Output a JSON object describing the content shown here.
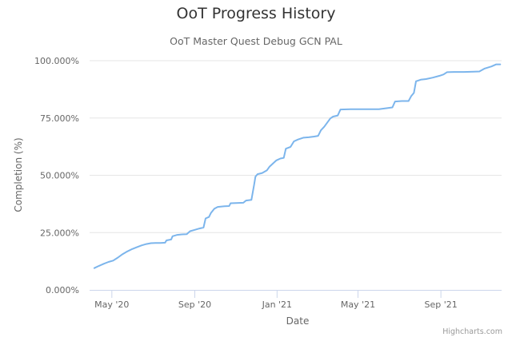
{
  "chart_data": {
    "type": "line",
    "title": "OoT Progress History",
    "subtitle": "OoT Master Quest Debug GCN PAL",
    "xlabel": "Date",
    "ylabel": "Completion (%)",
    "ylim": [
      0,
      100
    ],
    "y_ticks": [
      "0.000%",
      "25.000%",
      "50.000%",
      "75.000%",
      "100.000%"
    ],
    "y_tick_values": [
      0,
      25,
      50,
      75,
      100
    ],
    "x_ticks": [
      "May '20",
      "Sep '20",
      "Jan '21",
      "May '21",
      "Sep '21"
    ],
    "x_tick_values": [
      "2020-05-01",
      "2020-09-01",
      "2021-01-01",
      "2021-05-01",
      "2021-09-01"
    ],
    "xlim": [
      "2020-03-29",
      "2021-11-30"
    ],
    "grid": "horizontal",
    "series": [
      {
        "color": "#7cb5ec",
        "points": [
          [
            "2020-04-05",
            9.5
          ],
          [
            "2020-04-12",
            10.5
          ],
          [
            "2020-04-19",
            11.4
          ],
          [
            "2020-04-26",
            12.2
          ],
          [
            "2020-05-03",
            12.8
          ],
          [
            "2020-05-10",
            14.1
          ],
          [
            "2020-05-17",
            15.6
          ],
          [
            "2020-05-24",
            16.8
          ],
          [
            "2020-05-31",
            17.8
          ],
          [
            "2020-06-07",
            18.6
          ],
          [
            "2020-06-14",
            19.4
          ],
          [
            "2020-06-21",
            20.0
          ],
          [
            "2020-06-28",
            20.4
          ],
          [
            "2020-07-05",
            20.5
          ],
          [
            "2020-07-12",
            20.5
          ],
          [
            "2020-07-19",
            20.6
          ],
          [
            "2020-07-21",
            21.6
          ],
          [
            "2020-07-28",
            22.0
          ],
          [
            "2020-07-30",
            23.4
          ],
          [
            "2020-08-06",
            24.0
          ],
          [
            "2020-08-13",
            24.2
          ],
          [
            "2020-08-20",
            24.3
          ],
          [
            "2020-08-25",
            25.6
          ],
          [
            "2020-09-01",
            26.2
          ],
          [
            "2020-09-08",
            26.8
          ],
          [
            "2020-09-14",
            27.2
          ],
          [
            "2020-09-17",
            31.2
          ],
          [
            "2020-09-22",
            31.8
          ],
          [
            "2020-09-25",
            33.6
          ],
          [
            "2020-09-30",
            35.4
          ],
          [
            "2020-10-05",
            36.2
          ],
          [
            "2020-10-15",
            36.5
          ],
          [
            "2020-10-22",
            36.6
          ],
          [
            "2020-10-24",
            37.8
          ],
          [
            "2020-11-01",
            37.9
          ],
          [
            "2020-11-12",
            38.0
          ],
          [
            "2020-11-16",
            39.0
          ],
          [
            "2020-11-24",
            39.3
          ],
          [
            "2020-11-28",
            46.0
          ],
          [
            "2020-11-30",
            49.4
          ],
          [
            "2020-12-03",
            50.5
          ],
          [
            "2020-12-10",
            51.0
          ],
          [
            "2020-12-17",
            52.2
          ],
          [
            "2020-12-21",
            53.8
          ],
          [
            "2020-12-26",
            55.2
          ],
          [
            "2020-12-31",
            56.5
          ],
          [
            "2021-01-06",
            57.3
          ],
          [
            "2021-01-11",
            57.6
          ],
          [
            "2021-01-14",
            61.6
          ],
          [
            "2021-01-21",
            62.4
          ],
          [
            "2021-01-26",
            64.8
          ],
          [
            "2021-02-01",
            65.6
          ],
          [
            "2021-02-09",
            66.4
          ],
          [
            "2021-02-17",
            66.6
          ],
          [
            "2021-02-25",
            66.9
          ],
          [
            "2021-03-03",
            67.2
          ],
          [
            "2021-03-07",
            69.6
          ],
          [
            "2021-03-12",
            71.2
          ],
          [
            "2021-03-17",
            73.2
          ],
          [
            "2021-03-21",
            74.8
          ],
          [
            "2021-03-25",
            75.6
          ],
          [
            "2021-04-01",
            76.1
          ],
          [
            "2021-04-05",
            78.7
          ],
          [
            "2021-04-20",
            78.8
          ],
          [
            "2021-05-10",
            78.8
          ],
          [
            "2021-06-01",
            78.8
          ],
          [
            "2021-06-10",
            79.2
          ],
          [
            "2021-06-21",
            79.6
          ],
          [
            "2021-06-25",
            82.2
          ],
          [
            "2021-07-05",
            82.4
          ],
          [
            "2021-07-15",
            82.4
          ],
          [
            "2021-07-19",
            84.6
          ],
          [
            "2021-07-23",
            86.0
          ],
          [
            "2021-07-26",
            91.0
          ],
          [
            "2021-08-02",
            91.7
          ],
          [
            "2021-08-10",
            92.0
          ],
          [
            "2021-08-20",
            92.6
          ],
          [
            "2021-08-30",
            93.4
          ],
          [
            "2021-09-05",
            94.0
          ],
          [
            "2021-09-10",
            95.0
          ],
          [
            "2021-09-20",
            95.1
          ],
          [
            "2021-10-05",
            95.1
          ],
          [
            "2021-10-20",
            95.2
          ],
          [
            "2021-10-28",
            95.3
          ],
          [
            "2021-11-05",
            96.6
          ],
          [
            "2021-11-15",
            97.5
          ],
          [
            "2021-11-22",
            98.4
          ],
          [
            "2021-11-28",
            98.4
          ]
        ]
      }
    ]
  },
  "credits": "Highcharts.com"
}
